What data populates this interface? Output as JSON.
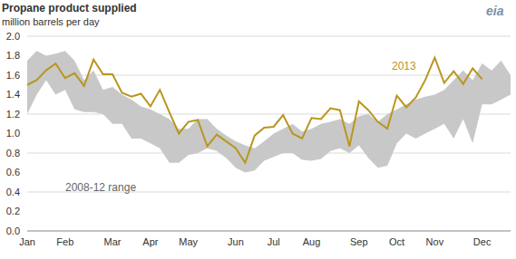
{
  "chart_data": {
    "type": "line",
    "title": "Propane product supplied",
    "subtitle": "million barrels per day",
    "source": "eia",
    "categories": [
      "Jan",
      null,
      null,
      null,
      "Feb",
      null,
      null,
      null,
      null,
      "Mar",
      null,
      null,
      null,
      "Apr",
      null,
      null,
      null,
      "May",
      null,
      null,
      null,
      null,
      "Jun",
      null,
      null,
      null,
      "Jul",
      null,
      null,
      null,
      "Aug",
      null,
      null,
      null,
      null,
      "Sep",
      null,
      null,
      null,
      "Oct",
      null,
      null,
      null,
      "Nov",
      null,
      null,
      null,
      null,
      "Dec",
      null,
      null,
      null
    ],
    "series": [
      {
        "name": "2013",
        "color": "#b8961e",
        "values": [
          1.5,
          1.55,
          1.65,
          1.72,
          1.57,
          1.62,
          1.49,
          1.76,
          1.61,
          1.61,
          1.42,
          1.38,
          1.41,
          1.28,
          1.45,
          1.22,
          1.0,
          1.12,
          1.14,
          0.87,
          0.99,
          0.92,
          0.85,
          0.7,
          0.98,
          1.06,
          1.07,
          1.19,
          1.0,
          0.95,
          1.16,
          1.15,
          1.26,
          1.24,
          0.87,
          1.33,
          1.24,
          1.12,
          1.05,
          1.39,
          1.27,
          1.37,
          1.55,
          1.78,
          1.52,
          1.64,
          1.51,
          1.67,
          1.56,
          null,
          null,
          null
        ]
      },
      {
        "name": "2008-12 range",
        "type": "area",
        "color": "#c8c8c8",
        "values": [
          [
            1.2,
            1.75
          ],
          [
            1.4,
            1.85
          ],
          [
            1.55,
            1.8
          ],
          [
            1.4,
            1.82
          ],
          [
            1.45,
            1.85
          ],
          [
            1.25,
            1.75
          ],
          [
            1.22,
            1.55
          ],
          [
            1.22,
            1.65
          ],
          [
            1.2,
            1.45
          ],
          [
            1.1,
            1.48
          ],
          [
            1.1,
            1.4
          ],
          [
            0.95,
            1.35
          ],
          [
            0.95,
            1.28
          ],
          [
            0.9,
            1.25
          ],
          [
            0.85,
            1.2
          ],
          [
            0.7,
            1.15
          ],
          [
            0.7,
            1.05
          ],
          [
            0.78,
            1.05
          ],
          [
            0.8,
            1.15
          ],
          [
            0.85,
            1.15
          ],
          [
            0.82,
            1.05
          ],
          [
            0.75,
            0.98
          ],
          [
            0.65,
            0.92
          ],
          [
            0.6,
            0.88
          ],
          [
            0.62,
            0.85
          ],
          [
            0.72,
            0.92
          ],
          [
            0.76,
            1.0
          ],
          [
            0.8,
            1.05
          ],
          [
            0.8,
            1.1
          ],
          [
            0.73,
            1.02
          ],
          [
            0.72,
            1.05
          ],
          [
            0.74,
            1.1
          ],
          [
            0.82,
            1.12
          ],
          [
            0.85,
            1.15
          ],
          [
            0.8,
            1.1
          ],
          [
            0.88,
            1.18
          ],
          [
            0.75,
            1.2
          ],
          [
            0.65,
            1.12
          ],
          [
            0.67,
            1.2
          ],
          [
            0.9,
            1.25
          ],
          [
            1.0,
            1.3
          ],
          [
            0.95,
            1.35
          ],
          [
            1.0,
            1.38
          ],
          [
            1.05,
            1.4
          ],
          [
            1.1,
            1.45
          ],
          [
            0.95,
            1.55
          ],
          [
            1.15,
            1.65
          ],
          [
            0.9,
            1.55
          ],
          [
            1.3,
            1.72
          ],
          [
            1.3,
            1.65
          ],
          [
            1.35,
            1.75
          ],
          [
            1.4,
            1.6
          ]
        ]
      }
    ],
    "ylim": [
      0,
      2
    ],
    "yticks": [
      {
        "value": 0,
        "label": "0.0"
      },
      0.2,
      0.4,
      0.6,
      0.8,
      {
        "value": 1,
        "label": "1.0"
      },
      1.2,
      1.4,
      1.6,
      1.8,
      {
        "value": 2,
        "label": "2.0"
      }
    ],
    "grid": true
  }
}
